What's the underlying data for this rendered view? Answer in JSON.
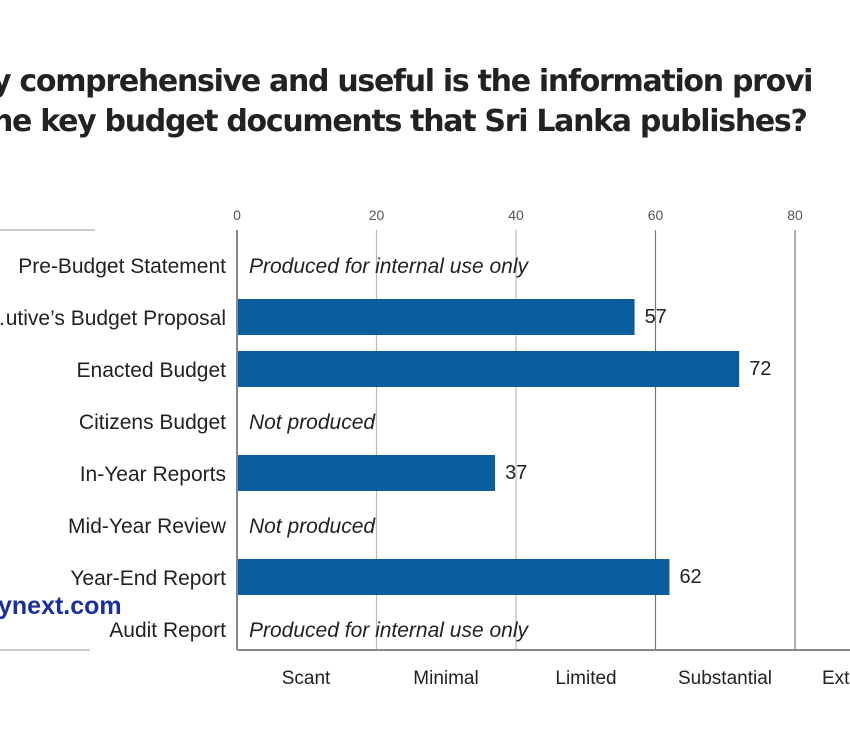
{
  "chart_data": {
    "type": "bar",
    "orientation": "horizontal",
    "title": "…w comprehensive and useful is the information provi… …he key budget documents that Sri Lanka publishes?",
    "title_lines": [
      "y comprehensive and useful is the information provi",
      "he key budget documents that Sri Lanka publishes?"
    ],
    "categories": [
      "Pre-Budget Statement",
      "…utive’s Budget Proposal",
      "Enacted Budget",
      "Citizens Budget",
      "In-Year Reports",
      "Mid-Year Review",
      "Year-End Report",
      "Audit Report"
    ],
    "values": [
      null,
      57,
      72,
      null,
      37,
      null,
      62,
      null
    ],
    "notes": [
      "Produced for internal use only",
      null,
      null,
      "Not produced",
      null,
      "Not produced",
      null,
      "Produced for internal use only"
    ],
    "xlim": [
      0,
      100
    ],
    "x_ticks": [
      0,
      20,
      40,
      60,
      80
    ],
    "x_tick_position": "top",
    "level_labels": [
      "Scant",
      "Minimal",
      "Limited",
      "Substantial",
      "Ext…"
    ],
    "bar_color": "#0a5e9e",
    "grid": true,
    "watermark": "ynext.com"
  }
}
